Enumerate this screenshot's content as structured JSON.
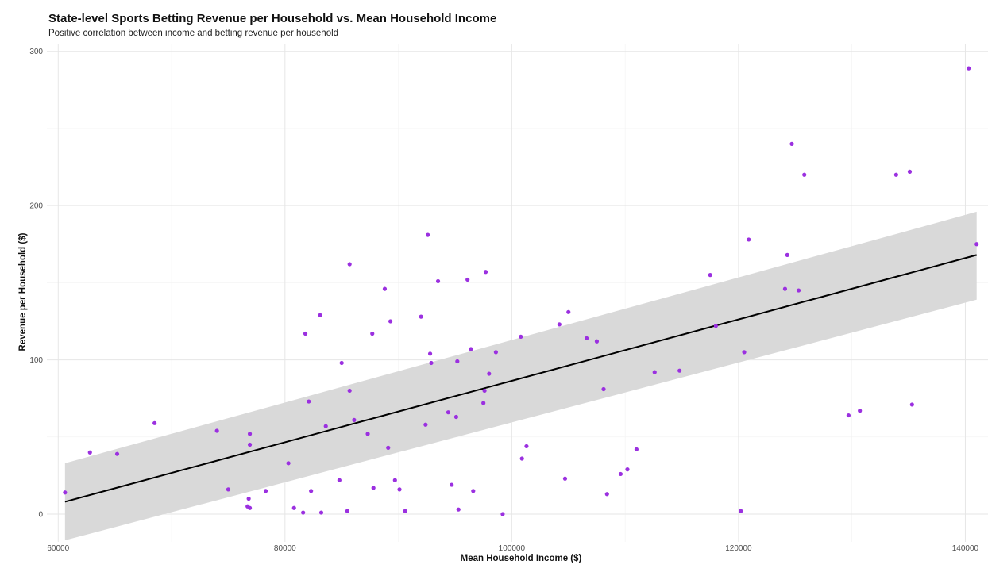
{
  "chart_data": {
    "type": "scatter",
    "title": "State-level Sports Betting Revenue per Household vs. Mean Household Income",
    "subtitle": "Positive correlation between income and betting revenue per household",
    "xlabel": "Mean Household Income ($)",
    "ylabel": "Revenue per Household ($)",
    "xlim": [
      59000,
      142000
    ],
    "ylim": [
      -18,
      305
    ],
    "x_ticks": [
      60000,
      80000,
      100000,
      120000,
      140000
    ],
    "x_tick_labels": [
      "60000",
      "80000",
      "100000",
      "120000",
      "140000"
    ],
    "y_ticks": [
      0,
      100,
      200,
      300
    ],
    "y_tick_labels": [
      "0",
      "100",
      "200",
      "300"
    ],
    "grid": true,
    "point_color": "#9b30e0",
    "points": [
      [
        60600,
        14
      ],
      [
        62800,
        40
      ],
      [
        65200,
        39
      ],
      [
        68500,
        59
      ],
      [
        74000,
        54
      ],
      [
        75000,
        16
      ],
      [
        76700,
        5
      ],
      [
        76800,
        10
      ],
      [
        76900,
        4
      ],
      [
        76900,
        45
      ],
      [
        76900,
        52
      ],
      [
        78300,
        15
      ],
      [
        80300,
        33
      ],
      [
        80800,
        4
      ],
      [
        81600,
        1
      ],
      [
        81800,
        117
      ],
      [
        82100,
        73
      ],
      [
        82300,
        15
      ],
      [
        83100,
        129
      ],
      [
        83200,
        1
      ],
      [
        83600,
        57
      ],
      [
        84800,
        22
      ],
      [
        85000,
        98
      ],
      [
        85500,
        2
      ],
      [
        85700,
        162
      ],
      [
        85700,
        80
      ],
      [
        86100,
        61
      ],
      [
        87300,
        52
      ],
      [
        87700,
        117
      ],
      [
        87800,
        17
      ],
      [
        88800,
        146
      ],
      [
        89100,
        43
      ],
      [
        89300,
        125
      ],
      [
        89700,
        22
      ],
      [
        90100,
        16
      ],
      [
        90600,
        2
      ],
      [
        92000,
        128
      ],
      [
        92400,
        58
      ],
      [
        92600,
        181
      ],
      [
        92800,
        104
      ],
      [
        92900,
        98
      ],
      [
        93500,
        151
      ],
      [
        94400,
        66
      ],
      [
        94700,
        19
      ],
      [
        95100,
        63
      ],
      [
        95200,
        99
      ],
      [
        95300,
        3
      ],
      [
        96100,
        152
      ],
      [
        96400,
        107
      ],
      [
        96600,
        15
      ],
      [
        97500,
        72
      ],
      [
        97600,
        80
      ],
      [
        97700,
        157
      ],
      [
        98000,
        91
      ],
      [
        98600,
        105
      ],
      [
        99200,
        0
      ],
      [
        100800,
        115
      ],
      [
        100900,
        36
      ],
      [
        101300,
        44
      ],
      [
        104200,
        123
      ],
      [
        104700,
        23
      ],
      [
        105000,
        131
      ],
      [
        106600,
        114
      ],
      [
        107500,
        112
      ],
      [
        108100,
        81
      ],
      [
        108400,
        13
      ],
      [
        109600,
        26
      ],
      [
        110200,
        29
      ],
      [
        111000,
        42
      ],
      [
        112600,
        92
      ],
      [
        114800,
        93
      ],
      [
        117500,
        155
      ],
      [
        118000,
        122
      ],
      [
        120200,
        2
      ],
      [
        120500,
        105
      ],
      [
        120900,
        178
      ],
      [
        124100,
        146
      ],
      [
        124300,
        168
      ],
      [
        124700,
        240
      ],
      [
        125300,
        145
      ],
      [
        125800,
        220
      ],
      [
        129700,
        64
      ],
      [
        130700,
        67
      ],
      [
        133900,
        220
      ],
      [
        135100,
        222
      ],
      [
        135300,
        71
      ],
      [
        140300,
        289
      ],
      [
        141000,
        175
      ]
    ],
    "trend_line": {
      "color": "#000000",
      "x": [
        60600,
        141000
      ],
      "y": [
        8,
        168
      ],
      "ci_color": "#d9d9d9",
      "ci_lower": [
        -17,
        139
      ],
      "ci_upper": [
        33,
        196
      ]
    }
  }
}
